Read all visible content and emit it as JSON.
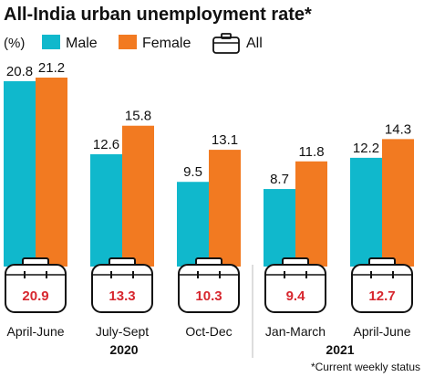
{
  "chart_data": {
    "type": "bar",
    "title": "All-India urban unemployment rate*",
    "unit_label": "(%)",
    "categories": [
      "April-June",
      "July-Sept",
      "Oct-Dec",
      "Jan-March",
      "April-June"
    ],
    "year_labels": [
      "2020",
      "2021"
    ],
    "series": [
      {
        "name": "Male",
        "color": "#10b8cc",
        "values": [
          20.8,
          12.6,
          9.5,
          8.7,
          12.2
        ]
      },
      {
        "name": "Female",
        "color": "#f27a21",
        "values": [
          21.2,
          15.8,
          13.1,
          11.8,
          14.3
        ]
      }
    ],
    "all": {
      "name": "All",
      "icon": "briefcase-icon",
      "color": "#d7272f",
      "values": [
        "20.9",
        "13.3",
        "10.3",
        "9.4",
        "12.7"
      ]
    },
    "ylim": [
      0,
      22
    ],
    "footnote": "*Current weekly status"
  }
}
